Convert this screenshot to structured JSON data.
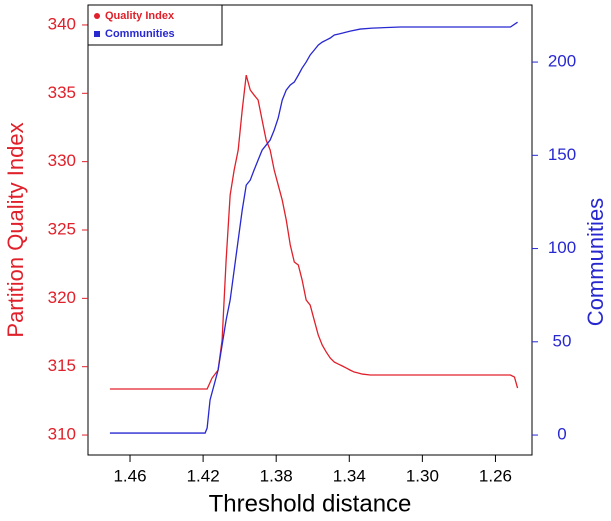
{
  "chart_data": {
    "type": "line",
    "x_label": "Threshold distance",
    "y_label": "Partition Quality Index",
    "y2_label": "Communities",
    "xlim": [
      1.483,
      1.24
    ],
    "xreverse": true,
    "xticks": [
      1.46,
      1.42,
      1.38,
      1.34,
      {
        "value": 1.3,
        "label": "1.30"
      },
      1.26
    ],
    "ylim": [
      308.54,
      341.46
    ],
    "yticks": [
      310,
      315,
      320,
      325,
      330,
      335,
      340
    ],
    "y2lim": [
      -10.7,
      230.6
    ],
    "y2ticks": [
      0,
      50,
      100,
      150,
      200
    ],
    "legend": "top-left",
    "series": [
      {
        "name": "Quality Index",
        "color": "#e0202a",
        "axis": "y",
        "marker": "circle",
        "x": [
          1.471,
          1.4178,
          1.4151,
          1.4118,
          1.4096,
          1.4074,
          1.4052,
          1.403,
          1.4008,
          1.3986,
          1.3964,
          1.3942,
          1.3921,
          1.3899,
          1.3877,
          1.3855,
          1.3833,
          1.3811,
          1.3789,
          1.3767,
          1.3745,
          1.3723,
          1.3701,
          1.3679,
          1.3658,
          1.3636,
          1.3614,
          1.3592,
          1.357,
          1.3548,
          1.3526,
          1.3504,
          1.3482,
          1.346,
          1.3438,
          1.3416,
          1.3395,
          1.3373,
          1.3351,
          1.3329,
          1.3285,
          1.3121,
          1.2518,
          1.2496,
          1.2479
        ],
        "values": [
          313.37,
          313.37,
          314.17,
          314.75,
          316.95,
          322.8,
          327.56,
          329.39,
          330.85,
          333.77,
          336.33,
          335.24,
          334.87,
          334.51,
          333.04,
          331.58,
          330.85,
          329.39,
          328.29,
          327.19,
          325.73,
          323.9,
          322.66,
          322.44,
          321.34,
          319.88,
          319.51,
          318.41,
          317.32,
          316.58,
          316.07,
          315.63,
          315.34,
          315.19,
          315.05,
          314.9,
          314.75,
          314.61,
          314.54,
          314.46,
          314.39,
          314.39,
          314.39,
          314.24,
          313.44
        ]
      },
      {
        "name": "Communities",
        "color": "#2828d0",
        "axis": "y2",
        "marker": "square",
        "x": [
          1.471,
          1.4189,
          1.4178,
          1.4162,
          1.414,
          1.4118,
          1.4096,
          1.4074,
          1.4052,
          1.403,
          1.4008,
          1.3986,
          1.3964,
          1.3942,
          1.3921,
          1.3899,
          1.3877,
          1.3855,
          1.3833,
          1.3811,
          1.3789,
          1.3767,
          1.3745,
          1.3723,
          1.3701,
          1.3679,
          1.3658,
          1.3636,
          1.3614,
          1.3592,
          1.357,
          1.3548,
          1.3526,
          1.3504,
          1.3482,
          1.346,
          1.3438,
          1.3395,
          1.334,
          1.3274,
          1.3121,
          1.2518,
          1.2479
        ],
        "values": [
          1.07,
          1.07,
          3.75,
          18.8,
          26.8,
          34.9,
          48.3,
          61.7,
          72.4,
          88.5,
          104.6,
          120.6,
          134.0,
          136.7,
          142.1,
          147.5,
          152.8,
          155.5,
          158.2,
          163.5,
          170.0,
          179.6,
          185.0,
          187.7,
          189.3,
          193.0,
          196.8,
          200.0,
          203.8,
          206.4,
          209.1,
          210.7,
          211.8,
          212.9,
          214.5,
          215.0,
          215.5,
          216.6,
          217.7,
          218.2,
          218.8,
          218.8,
          221.4
        ]
      }
    ]
  }
}
